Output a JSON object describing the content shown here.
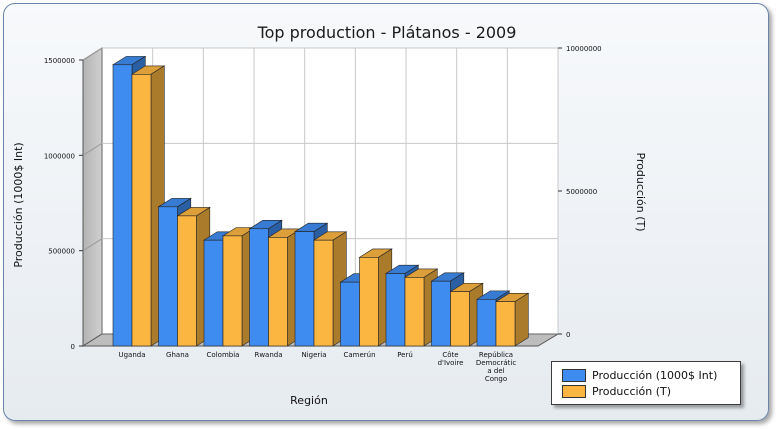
{
  "colors": {
    "series1": "#3f8cf0",
    "series2": "#fbb541",
    "wall": "#c6c6c6",
    "grid": "#c8c8c8"
  },
  "chart_data": {
    "type": "bar",
    "title": "Top production - Plátanos - 2009",
    "xlabel": "Región",
    "ylabel": "Producción (1000$ Int)",
    "ylabel_right": "Producción (T)",
    "categories": [
      "Uganda",
      "Ghana",
      "Colombia",
      "Rwanda",
      "Nigeria",
      "Camerún",
      "Perú",
      "Côte d'Ivoire",
      "República Democrática del Congo"
    ],
    "category_labels": [
      [
        "Uganda"
      ],
      [
        "Ghana"
      ],
      [
        "Colombia"
      ],
      [
        "Rwanda"
      ],
      [
        "Nigeria"
      ],
      [
        "Camerún"
      ],
      [
        "Perú"
      ],
      [
        "Côte",
        "d'Ivoire"
      ],
      [
        "República",
        "Democrátic",
        "a del",
        "Congo"
      ]
    ],
    "series": [
      {
        "name": "Producción (1000$ Int)",
        "axis": "left",
        "values": [
          1475000,
          730000,
          555000,
          615000,
          600000,
          335000,
          380000,
          340000,
          245000
        ]
      },
      {
        "name": "Producción (T)",
        "axis": "right",
        "values": [
          9500000,
          4550000,
          3850000,
          3800000,
          3700000,
          3100000,
          2400000,
          1900000,
          1550000
        ]
      }
    ],
    "ylim": [
      0,
      1500000
    ],
    "ylim_right": [
      0,
      10000000
    ],
    "yticks": [
      "0",
      "500000",
      "1000000",
      "1500000"
    ],
    "yticks_right": [
      "0",
      "5000000",
      "10000000"
    ],
    "grid": true,
    "legend_position": "bottom-right"
  }
}
